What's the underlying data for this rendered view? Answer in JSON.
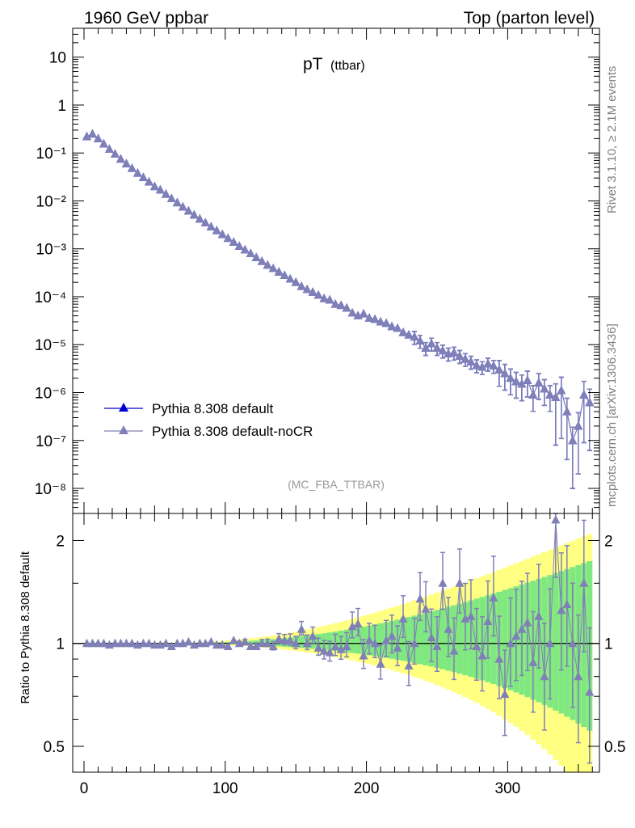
{
  "header": {
    "left_title": "1960 GeV ppbar",
    "right_title": "Top (parton level)"
  },
  "side_labels": {
    "rivet": "Rivet 3.1.10, ≥ 2.1M events",
    "mcplots": "mcplots.cern.ch [arXiv:1306.3436]"
  },
  "colors": {
    "default": "#0000cc",
    "nocr": "#8080b8",
    "band_yellow": "#ffff80",
    "band_green": "#80e880"
  },
  "chart_data": [
    {
      "type": "scatter",
      "title_main": "pT",
      "title_sub": "(ttbar)",
      "analysis_label": "(MC_FBA_TTBAR)",
      "xlabel": "",
      "ylabel": "",
      "yscale": "log",
      "xlim": [
        -8,
        365
      ],
      "ylim": [
        3e-09,
        40
      ],
      "y_ticks": [
        {
          "value": 10,
          "label": "10"
        },
        {
          "value": 1,
          "label": "1"
        },
        {
          "value": 0.1,
          "label": "10⁻¹"
        },
        {
          "value": 0.01,
          "label": "10⁻²"
        },
        {
          "value": 0.001,
          "label": "10⁻³"
        },
        {
          "value": 0.0001,
          "label": "10⁻⁴"
        },
        {
          "value": 1e-05,
          "label": "10⁻⁵"
        },
        {
          "value": 1e-06,
          "label": "10⁻⁶"
        },
        {
          "value": 1e-07,
          "label": "10⁻⁷"
        },
        {
          "value": 1e-08,
          "label": "10⁻⁸"
        }
      ],
      "legend": [
        "Pythia 8.308 default",
        "Pythia 8.308 default-noCR"
      ],
      "legend_position": "bottom-left",
      "x": [
        2,
        6,
        10,
        14,
        18,
        22,
        26,
        30,
        34,
        38,
        42,
        46,
        50,
        54,
        58,
        62,
        66,
        70,
        74,
        78,
        82,
        86,
        90,
        94,
        98,
        102,
        106,
        110,
        114,
        118,
        122,
        126,
        130,
        134,
        138,
        142,
        146,
        150,
        154,
        158,
        162,
        166,
        170,
        174,
        178,
        182,
        186,
        190,
        194,
        198,
        202,
        206,
        210,
        214,
        218,
        222,
        226,
        230,
        234,
        238,
        242,
        246,
        250,
        254,
        258,
        262,
        266,
        270,
        274,
        278,
        282,
        286,
        290,
        294,
        298,
        302,
        306,
        310,
        314,
        318,
        322,
        326,
        330,
        334,
        338,
        342,
        346,
        350,
        354,
        358
      ],
      "series": [
        {
          "name": "Pythia 8.308 default",
          "values": [
            0.22,
            0.25,
            0.2,
            0.155,
            0.12,
            0.095,
            0.075,
            0.06,
            0.048,
            0.038,
            0.031,
            0.025,
            0.02,
            0.017,
            0.0138,
            0.0112,
            0.0092,
            0.0075,
            0.0062,
            0.0051,
            0.0042,
            0.0035,
            0.0029,
            0.0024,
            0.002,
            0.00166,
            0.00138,
            0.00114,
            0.00095,
            0.0008,
            0.00066,
            0.00055,
            0.00046,
            0.00039,
            0.00033,
            0.00028,
            0.000235,
            0.0002,
            0.000165,
            0.000142,
            0.000125,
            0.000108,
            9.2e-05,
            8.6e-05,
            7e-05,
            6.6e-05,
            5.8e-05,
            4.6e-05,
            4e-05,
            4.4e-05,
            3.6e-05,
            3.4e-05,
            3e-05,
            2.8e-05,
            2.4e-05,
            2.2e-05,
            1.8e-05,
            1.6e-05,
            1.45e-05,
            1.2e-05,
            8.5e-06,
            1.05e-05,
            8.5e-06,
            7.5e-06,
            6.5e-06,
            6.8e-06,
            5.8e-06,
            5e-06,
            4.4e-06,
            3.7e-06,
            3.4e-06,
            4e-06,
            3.6e-06,
            3e-06,
            2.5e-06,
            2e-06,
            1.7e-06,
            1.5e-06,
            1.8e-06,
            9e-07,
            1.6e-06,
            1.2e-06,
            9e-07,
            8e-07,
            1.1e-06,
            4e-07,
            1e-07,
            2e-07,
            9e-07,
            6.2e-07
          ]
        },
        {
          "name": "Pythia 8.308 default-noCR",
          "values": [
            0.22,
            0.25,
            0.2,
            0.155,
            0.12,
            0.095,
            0.075,
            0.06,
            0.048,
            0.038,
            0.031,
            0.025,
            0.02,
            0.017,
            0.0138,
            0.0112,
            0.0092,
            0.0075,
            0.0062,
            0.0051,
            0.0042,
            0.0035,
            0.0029,
            0.0024,
            0.002,
            0.00166,
            0.00138,
            0.00114,
            0.00095,
            0.0008,
            0.00066,
            0.00055,
            0.00046,
            0.00039,
            0.00033,
            0.00028,
            0.000235,
            0.0002,
            0.000165,
            0.000142,
            0.000125,
            0.000108,
            9.2e-05,
            8.6e-05,
            7e-05,
            6.6e-05,
            5.8e-05,
            4.6e-05,
            4e-05,
            4.4e-05,
            3.6e-05,
            3.4e-05,
            3e-05,
            2.8e-05,
            2.4e-05,
            2.2e-05,
            1.8e-05,
            1.6e-05,
            1.45e-05,
            1.2e-05,
            8.5e-06,
            1.05e-05,
            8.5e-06,
            7.5e-06,
            6.5e-06,
            6.8e-06,
            5.8e-06,
            5e-06,
            4.4e-06,
            3.7e-06,
            3.4e-06,
            4e-06,
            3.6e-06,
            3e-06,
            2.5e-06,
            2e-06,
            1.7e-06,
            1.5e-06,
            1.8e-06,
            9e-07,
            1.6e-06,
            1.2e-06,
            9e-07,
            8e-07,
            1.1e-06,
            4e-07,
            1e-07,
            2e-07,
            9e-07,
            6.2e-07
          ]
        }
      ]
    },
    {
      "type": "scatter",
      "ylabel": "Ratio to Pythia 8.308 default",
      "yscale": "log",
      "xlim": [
        -8,
        365
      ],
      "ylim": [
        0.42,
        2.4
      ],
      "y_ticks": [
        {
          "value": 0.5,
          "label": "0.5"
        },
        {
          "value": 1,
          "label": "1"
        },
        {
          "value": 2,
          "label": "2"
        }
      ],
      "x_ticks": [
        {
          "value": 0,
          "label": "0"
        },
        {
          "value": 100,
          "label": "100"
        },
        {
          "value": 200,
          "label": "200"
        },
        {
          "value": 300,
          "label": "300"
        }
      ],
      "reference_line": 1,
      "x": [
        2,
        6,
        10,
        14,
        18,
        22,
        26,
        30,
        34,
        38,
        42,
        46,
        50,
        54,
        58,
        62,
        66,
        70,
        74,
        78,
        82,
        86,
        90,
        94,
        98,
        102,
        106,
        110,
        114,
        118,
        122,
        126,
        130,
        134,
        138,
        142,
        146,
        150,
        154,
        158,
        162,
        166,
        170,
        174,
        178,
        182,
        186,
        190,
        194,
        198,
        202,
        206,
        210,
        214,
        218,
        222,
        226,
        230,
        234,
        238,
        242,
        246,
        250,
        254,
        258,
        262,
        266,
        270,
        274,
        278,
        282,
        286,
        290,
        294,
        298,
        302,
        306,
        310,
        314,
        318,
        322,
        326,
        330,
        334,
        338,
        342,
        346,
        350,
        354,
        358
      ],
      "series": [
        {
          "name": "Pythia 8.308 default-noCR",
          "values": [
            1.0,
            1.0,
            1.0,
            1.0,
            0.99,
            1.0,
            1.0,
            1.0,
            1.0,
            0.99,
            1.0,
            1.0,
            0.99,
            0.99,
            1.0,
            0.98,
            1.0,
            1.0,
            1.01,
            0.99,
            1.0,
            1.0,
            1.01,
            0.99,
            0.99,
            0.98,
            1.02,
            1.0,
            1.01,
            0.98,
            0.98,
            1.0,
            1.0,
            0.98,
            1.03,
            1.02,
            1.02,
            1.0,
            1.1,
            1.0,
            1.05,
            0.97,
            0.95,
            0.94,
            0.98,
            0.96,
            0.98,
            1.12,
            1.14,
            0.92,
            1.02,
            1.0,
            0.87,
            1.02,
            1.05,
            0.97,
            1.18,
            0.86,
            1.0,
            1.35,
            1.26,
            1.04,
            0.98,
            1.5,
            1.1,
            0.95,
            1.5,
            1.18,
            1.2,
            0.98,
            0.92,
            1.16,
            1.36,
            0.9,
            0.71,
            1.0,
            1.05,
            1.1,
            1.15,
            0.88,
            1.2,
            0.8,
            1.0,
            2.3,
            1.25,
            1.3,
            1.0,
            0.8,
            1.5,
            0.72
          ]
        }
      ]
    }
  ]
}
